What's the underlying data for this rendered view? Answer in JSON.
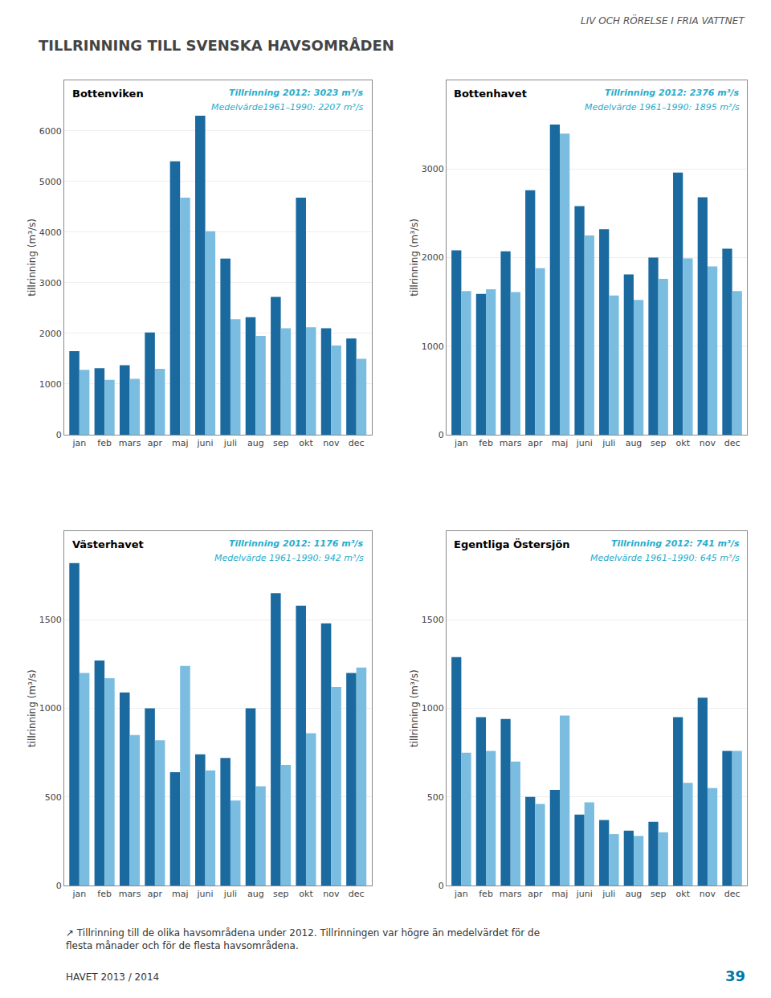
{
  "title": "TILLRINNING TILL SVENSKA HAVSOMRÅDEN",
  "header": "LIV OCH RÖRELSE I FRIA VATTNET",
  "caption": "↗ Tillrinning till de olika havsområdena under 2012. Tillrinningen var högre än medelvärdet för de flesta månader och för de flesta havsområdena.",
  "footer": [
    "HAVET 2013 / 2014",
    "39"
  ],
  "chart_data": [
    {
      "type": "bar",
      "title": "Bottenviken",
      "annotations": [
        "Tillrinning 2012: 3023 m³/s",
        "Medelvärde1961–1990: 2207 m³/s"
      ],
      "ylabel": "tillrinning (m³/s)",
      "categories": [
        "jan",
        "feb",
        "mars",
        "apr",
        "maj",
        "juni",
        "juli",
        "aug",
        "sep",
        "okt",
        "nov",
        "dec"
      ],
      "series": [
        {
          "color": "#1a6aa0",
          "values": [
            1650,
            1310,
            1370,
            2020,
            5400,
            6300,
            3480,
            2320,
            2720,
            4680,
            2100,
            1900
          ]
        },
        {
          "color": "#7abde0",
          "values": [
            1280,
            1080,
            1100,
            1300,
            4680,
            4020,
            2280,
            1950,
            2100,
            2120,
            1760,
            1500
          ]
        }
      ],
      "ylim": [
        0,
        7000
      ],
      "yticks": [
        0,
        1000,
        2000,
        3000,
        4000,
        5000,
        6000
      ],
      "grid": true
    },
    {
      "type": "bar",
      "title": "Bottenhavet",
      "annotations": [
        "Tillrinning 2012: 2376 m³/s",
        "Medelvärde 1961–1990: 1895 m³/s"
      ],
      "ylabel": "tillrinning (m³/s)",
      "categories": [
        "jan",
        "feb",
        "mars",
        "apr",
        "maj",
        "juni",
        "juli",
        "aug",
        "sep",
        "okt",
        "nov",
        "dec"
      ],
      "series": [
        {
          "color": "#1a6aa0",
          "values": [
            2080,
            1590,
            2070,
            2760,
            3500,
            2580,
            2320,
            1810,
            2000,
            2960,
            2680,
            2100
          ]
        },
        {
          "color": "#7abde0",
          "values": [
            1620,
            1640,
            1610,
            1880,
            3400,
            2250,
            1570,
            1520,
            1760,
            1990,
            1900,
            1620
          ]
        }
      ],
      "ylim": [
        0,
        4000
      ],
      "yticks": [
        0,
        1000,
        2000,
        3000
      ],
      "grid": true
    },
    {
      "type": "bar",
      "title": "Västerhavet",
      "annotations": [
        "Tillrinning 2012: 1176 m³/s",
        "Medelvärde 1961–1990: 942 m³/s"
      ],
      "ylabel": "tillrinning (m³/s)",
      "categories": [
        "jan",
        "feb",
        "mars",
        "apr",
        "maj",
        "juni",
        "juli",
        "aug",
        "sep",
        "okt",
        "nov",
        "dec"
      ],
      "series": [
        {
          "color": "#1a6aa0",
          "values": [
            1820,
            1270,
            1090,
            1000,
            640,
            740,
            720,
            1000,
            1650,
            1580,
            1480,
            1200
          ]
        },
        {
          "color": "#7abde0",
          "values": [
            1200,
            1170,
            850,
            820,
            1240,
            650,
            480,
            560,
            680,
            860,
            1120,
            1230
          ]
        }
      ],
      "ylim": [
        0,
        2000
      ],
      "yticks": [
        0,
        500,
        1000,
        1500
      ],
      "grid": true
    },
    {
      "type": "bar",
      "title": "Egentliga Östersjön",
      "annotations": [
        "Tillrinning 2012: 741 m³/s",
        "Medelvärde 1961–1990: 645 m³/s"
      ],
      "ylabel": "tillrinning (m³/s)",
      "categories": [
        "jan",
        "feb",
        "mars",
        "apr",
        "maj",
        "juni",
        "juli",
        "aug",
        "sep",
        "okt",
        "nov",
        "dec"
      ],
      "series": [
        {
          "color": "#1a6aa0",
          "values": [
            1290,
            950,
            940,
            500,
            540,
            400,
            370,
            310,
            360,
            950,
            1060,
            760
          ]
        },
        {
          "color": "#7abde0",
          "values": [
            750,
            760,
            700,
            460,
            960,
            470,
            290,
            280,
            300,
            580,
            550,
            760
          ]
        }
      ],
      "ylim": [
        0,
        2000
      ],
      "yticks": [
        0,
        500,
        1000,
        1500
      ],
      "grid": true
    }
  ]
}
